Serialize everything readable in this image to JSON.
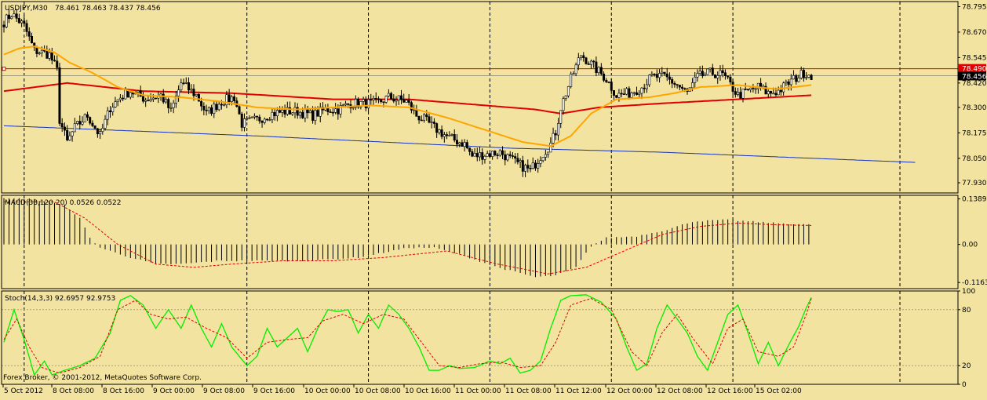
{
  "header": {
    "title": "USDJPY,M30",
    "ohlc": "78.461 78.463 78.437 78.456"
  },
  "footer": {
    "copyright": "Forex Broker, © 2001-2012, MetaQuotes Software Corp."
  },
  "colors": {
    "background": "#f3e3a0",
    "candle": "#000000",
    "ma_fast": "#ffa500",
    "ma_slow": "#e00000",
    "ma_long": "#1030c0",
    "level_line": "#e00000",
    "macd_histogram": "#000000",
    "macd_signal": "#e00000",
    "stoch_main": "#00ee00",
    "stoch_signal": "#e00000",
    "price_tag_red": "#e00000",
    "price_tag_black": "#000000"
  },
  "chart_data": [
    {
      "type": "candlestick",
      "name": "main",
      "symbol": "USDJPY",
      "timeframe": "M30",
      "ylim": [
        77.88,
        78.82
      ],
      "y_ticks": [
        "78.795",
        "78.670",
        "78.545",
        "78.420",
        "78.300",
        "78.175",
        "78.050",
        "77.930"
      ],
      "x_ticks": [
        "5 Oct 2012",
        "8 Oct 08:00",
        "8 Oct 16:00",
        "9 Oct 00:00",
        "9 Oct 08:00",
        "9 Oct 16:00",
        "10 Oct 00:00",
        "10 Oct 08:00",
        "10 Oct 16:00",
        "11 Oct 00:00",
        "11 Oct 08:00",
        "11 Oct 12:00",
        "12 Oct 00:00",
        "12 Oct 08:00",
        "12 Oct 16:00",
        "15 Oct 02:00"
      ],
      "levels": [
        {
          "value": 78.49,
          "label": "78.490"
        },
        {
          "value": 78.456,
          "label": "78.456"
        }
      ],
      "close_anchors": [
        [
          0,
          78.72
        ],
        [
          3,
          78.76
        ],
        [
          8,
          78.7
        ],
        [
          12,
          78.58
        ],
        [
          18,
          78.56
        ],
        [
          21,
          78.48
        ],
        [
          22,
          78.24
        ],
        [
          25,
          78.13
        ],
        [
          28,
          78.2
        ],
        [
          33,
          78.26
        ],
        [
          38,
          78.16
        ],
        [
          42,
          78.3
        ],
        [
          46,
          78.35
        ],
        [
          50,
          78.38
        ],
        [
          56,
          78.34
        ],
        [
          62,
          78.36
        ],
        [
          66,
          78.28
        ],
        [
          70,
          78.42
        ],
        [
          76,
          78.36
        ],
        [
          80,
          78.27
        ],
        [
          86,
          78.33
        ],
        [
          91,
          78.35
        ],
        [
          94,
          78.22
        ],
        [
          100,
          78.24
        ],
        [
          106,
          78.27
        ],
        [
          111,
          78.28
        ],
        [
          116,
          78.28
        ],
        [
          122,
          78.26
        ],
        [
          127,
          78.29
        ],
        [
          132,
          78.29
        ],
        [
          137,
          78.32
        ],
        [
          143,
          78.32
        ],
        [
          147,
          78.32
        ],
        [
          152,
          78.35
        ],
        [
          159,
          78.33
        ],
        [
          163,
          78.26
        ],
        [
          166,
          78.24
        ],
        [
          170,
          78.2
        ],
        [
          176,
          78.15
        ],
        [
          182,
          78.12
        ],
        [
          185,
          78.06
        ],
        [
          190,
          78.07
        ],
        [
          196,
          78.08
        ],
        [
          202,
          78.03
        ],
        [
          208,
          77.99
        ],
        [
          212,
          78.06
        ],
        [
          216,
          78.12
        ],
        [
          218,
          78.18
        ],
        [
          220,
          78.3
        ],
        [
          224,
          78.44
        ],
        [
          228,
          78.56
        ],
        [
          233,
          78.5
        ],
        [
          238,
          78.44
        ],
        [
          242,
          78.36
        ],
        [
          247,
          78.37
        ],
        [
          252,
          78.4
        ],
        [
          256,
          78.45
        ],
        [
          261,
          78.45
        ],
        [
          266,
          78.41
        ],
        [
          270,
          78.37
        ],
        [
          274,
          78.45
        ],
        [
          279,
          78.47
        ],
        [
          284,
          78.46
        ],
        [
          290,
          78.36
        ],
        [
          294,
          78.38
        ],
        [
          298,
          78.4
        ],
        [
          302,
          78.37
        ],
        [
          306,
          78.38
        ],
        [
          311,
          78.43
        ],
        [
          316,
          78.47
        ],
        [
          319,
          78.46
        ]
      ],
      "ma_fast_anchors": [
        [
          0,
          78.56
        ],
        [
          6,
          78.59
        ],
        [
          12,
          78.6
        ],
        [
          20,
          78.57
        ],
        [
          26,
          78.52
        ],
        [
          35,
          78.47
        ],
        [
          45,
          78.4
        ],
        [
          55,
          78.36
        ],
        [
          70,
          78.35
        ],
        [
          85,
          78.33
        ],
        [
          100,
          78.3
        ],
        [
          115,
          78.29
        ],
        [
          130,
          78.3
        ],
        [
          145,
          78.31
        ],
        [
          160,
          78.3
        ],
        [
          175,
          78.25
        ],
        [
          190,
          78.19
        ],
        [
          205,
          78.13
        ],
        [
          216,
          78.11
        ],
        [
          224,
          78.16
        ],
        [
          232,
          78.27
        ],
        [
          242,
          78.34
        ],
        [
          255,
          78.35
        ],
        [
          265,
          78.37
        ],
        [
          275,
          78.4
        ],
        [
          290,
          78.41
        ],
        [
          305,
          78.39
        ],
        [
          319,
          78.41
        ]
      ],
      "ma_slow_anchors": [
        [
          0,
          78.38
        ],
        [
          25,
          78.42
        ],
        [
          55,
          78.38
        ],
        [
          90,
          78.37
        ],
        [
          130,
          78.34
        ],
        [
          160,
          78.34
        ],
        [
          190,
          78.31
        ],
        [
          210,
          78.29
        ],
        [
          220,
          78.27
        ],
        [
          235,
          78.3
        ],
        [
          260,
          78.32
        ],
        [
          290,
          78.34
        ],
        [
          319,
          78.36
        ]
      ],
      "ma_long_anchors": [
        [
          0,
          78.21
        ],
        [
          100,
          78.16
        ],
        [
          200,
          78.1
        ],
        [
          260,
          78.08
        ],
        [
          320,
          78.05
        ],
        [
          360,
          78.03
        ]
      ]
    },
    {
      "type": "bar",
      "name": "macd",
      "indicator": "MACD(38,120,20) 0.0526 0.0522",
      "ylim": [
        -0.135,
        0.15
      ],
      "y_ticks": [
        "0.1389",
        "0.00",
        "-0.1163"
      ],
      "histogram_anchors": [
        [
          0,
          0.14
        ],
        [
          10,
          0.14
        ],
        [
          24,
          0.12
        ],
        [
          30,
          0.08
        ],
        [
          34,
          0.02
        ],
        [
          38,
          -0.01
        ],
        [
          50,
          -0.04
        ],
        [
          60,
          -0.06
        ],
        [
          70,
          -0.06
        ],
        [
          85,
          -0.05
        ],
        [
          100,
          -0.05
        ],
        [
          120,
          -0.05
        ],
        [
          140,
          -0.04
        ],
        [
          160,
          -0.01
        ],
        [
          170,
          -0.01
        ],
        [
          180,
          -0.03
        ],
        [
          195,
          -0.07
        ],
        [
          210,
          -0.1
        ],
        [
          218,
          -0.095
        ],
        [
          226,
          -0.07
        ],
        [
          232,
          -0.005
        ],
        [
          238,
          0.02
        ],
        [
          250,
          0.025
        ],
        [
          262,
          0.045
        ],
        [
          272,
          0.07
        ],
        [
          285,
          0.075
        ],
        [
          295,
          0.07
        ],
        [
          305,
          0.065
        ],
        [
          319,
          0.06
        ]
      ],
      "signal_anchors": [
        [
          0,
          0.13
        ],
        [
          20,
          0.13
        ],
        [
          32,
          0.08
        ],
        [
          45,
          0.0
        ],
        [
          60,
          -0.06
        ],
        [
          75,
          -0.07
        ],
        [
          90,
          -0.06
        ],
        [
          110,
          -0.05
        ],
        [
          130,
          -0.05
        ],
        [
          150,
          -0.04
        ],
        [
          175,
          -0.02
        ],
        [
          195,
          -0.06
        ],
        [
          215,
          -0.09
        ],
        [
          230,
          -0.07
        ],
        [
          245,
          -0.02
        ],
        [
          260,
          0.03
        ],
        [
          275,
          0.055
        ],
        [
          290,
          0.065
        ],
        [
          305,
          0.06
        ],
        [
          319,
          0.058
        ]
      ]
    },
    {
      "type": "line",
      "name": "stochastic",
      "indicator": "Stoch(14,3,3) 92.6957 92.9753",
      "ylim": [
        0,
        100
      ],
      "y_ticks": [
        "100",
        "80",
        "20",
        "0"
      ],
      "main_anchors": [
        [
          0,
          45
        ],
        [
          4,
          80
        ],
        [
          8,
          48
        ],
        [
          12,
          10
        ],
        [
          16,
          25
        ],
        [
          19,
          10
        ],
        [
          24,
          15
        ],
        [
          30,
          20
        ],
        [
          36,
          28
        ],
        [
          42,
          55
        ],
        [
          46,
          90
        ],
        [
          50,
          95
        ],
        [
          55,
          85
        ],
        [
          60,
          60
        ],
        [
          65,
          80
        ],
        [
          70,
          60
        ],
        [
          74,
          85
        ],
        [
          78,
          60
        ],
        [
          82,
          40
        ],
        [
          86,
          65
        ],
        [
          90,
          40
        ],
        [
          96,
          20
        ],
        [
          100,
          30
        ],
        [
          104,
          60
        ],
        [
          108,
          40
        ],
        [
          112,
          50
        ],
        [
          116,
          60
        ],
        [
          120,
          35
        ],
        [
          124,
          60
        ],
        [
          128,
          80
        ],
        [
          132,
          78
        ],
        [
          136,
          80
        ],
        [
          140,
          55
        ],
        [
          144,
          75
        ],
        [
          148,
          60
        ],
        [
          152,
          85
        ],
        [
          156,
          75
        ],
        [
          160,
          60
        ],
        [
          164,
          40
        ],
        [
          168,
          15
        ],
        [
          172,
          15
        ],
        [
          176,
          20
        ],
        [
          180,
          17
        ],
        [
          186,
          18
        ],
        [
          192,
          25
        ],
        [
          196,
          22
        ],
        [
          200,
          28
        ],
        [
          204,
          12
        ],
        [
          208,
          15
        ],
        [
          212,
          25
        ],
        [
          216,
          60
        ],
        [
          220,
          90
        ],
        [
          224,
          95
        ],
        [
          230,
          96
        ],
        [
          236,
          88
        ],
        [
          242,
          70
        ],
        [
          246,
          40
        ],
        [
          250,
          15
        ],
        [
          254,
          22
        ],
        [
          258,
          60
        ],
        [
          262,
          85
        ],
        [
          266,
          70
        ],
        [
          270,
          55
        ],
        [
          274,
          30
        ],
        [
          278,
          15
        ],
        [
          282,
          45
        ],
        [
          286,
          75
        ],
        [
          290,
          85
        ],
        [
          294,
          55
        ],
        [
          298,
          22
        ],
        [
          302,
          45
        ],
        [
          306,
          20
        ],
        [
          310,
          42
        ],
        [
          314,
          62
        ],
        [
          317,
          82
        ],
        [
          319,
          93
        ]
      ],
      "signal_anchors": [
        [
          0,
          48
        ],
        [
          5,
          70
        ],
        [
          10,
          40
        ],
        [
          15,
          18
        ],
        [
          22,
          12
        ],
        [
          30,
          18
        ],
        [
          38,
          30
        ],
        [
          45,
          80
        ],
        [
          52,
          90
        ],
        [
          58,
          75
        ],
        [
          65,
          70
        ],
        [
          72,
          72
        ],
        [
          80,
          60
        ],
        [
          88,
          50
        ],
        [
          96,
          28
        ],
        [
          104,
          45
        ],
        [
          112,
          48
        ],
        [
          120,
          50
        ],
        [
          126,
          68
        ],
        [
          134,
          75
        ],
        [
          142,
          65
        ],
        [
          150,
          75
        ],
        [
          158,
          70
        ],
        [
          165,
          45
        ],
        [
          172,
          20
        ],
        [
          180,
          18
        ],
        [
          188,
          22
        ],
        [
          196,
          24
        ],
        [
          204,
          18
        ],
        [
          212,
          20
        ],
        [
          218,
          45
        ],
        [
          224,
          85
        ],
        [
          232,
          92
        ],
        [
          240,
          80
        ],
        [
          248,
          35
        ],
        [
          254,
          20
        ],
        [
          260,
          55
        ],
        [
          266,
          75
        ],
        [
          272,
          50
        ],
        [
          280,
          22
        ],
        [
          286,
          60
        ],
        [
          292,
          70
        ],
        [
          298,
          35
        ],
        [
          306,
          30
        ],
        [
          312,
          40
        ],
        [
          317,
          75
        ],
        [
          319,
          92
        ]
      ]
    }
  ]
}
